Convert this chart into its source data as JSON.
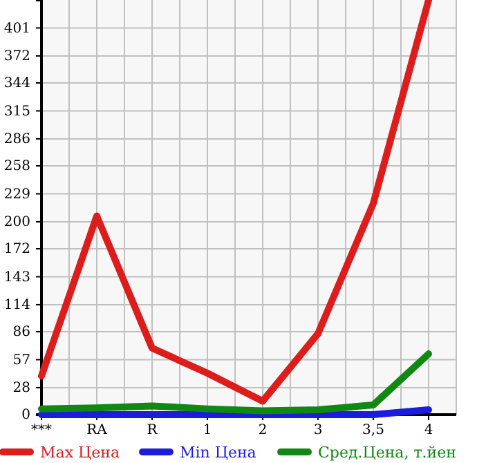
{
  "chart_data": {
    "type": "line",
    "categories": [
      "***",
      "RA",
      "R",
      "1",
      "2",
      "3",
      "3,5",
      "4"
    ],
    "series": [
      {
        "name": "Max Цена",
        "color": "#dd1c1c",
        "values": [
          40,
          206,
          69,
          43,
          14,
          84,
          219,
          430
        ]
      },
      {
        "name": "Min Цена",
        "color": "#1c1cdd",
        "values": [
          0,
          0,
          0,
          0,
          0,
          0,
          0,
          5
        ]
      },
      {
        "name": "Сред.Цена, т.йен",
        "color": "#118811",
        "values": [
          6,
          7,
          9,
          6,
          4,
          5,
          10,
          63
        ]
      }
    ],
    "ylim": [
      0,
      430
    ],
    "yticks": [
      0,
      28,
      57,
      86,
      114,
      143,
      172,
      200,
      229,
      258,
      286,
      315,
      344,
      372,
      401
    ],
    "grid": true,
    "legend": "bottom",
    "marker": "none",
    "line_style": "solid"
  }
}
